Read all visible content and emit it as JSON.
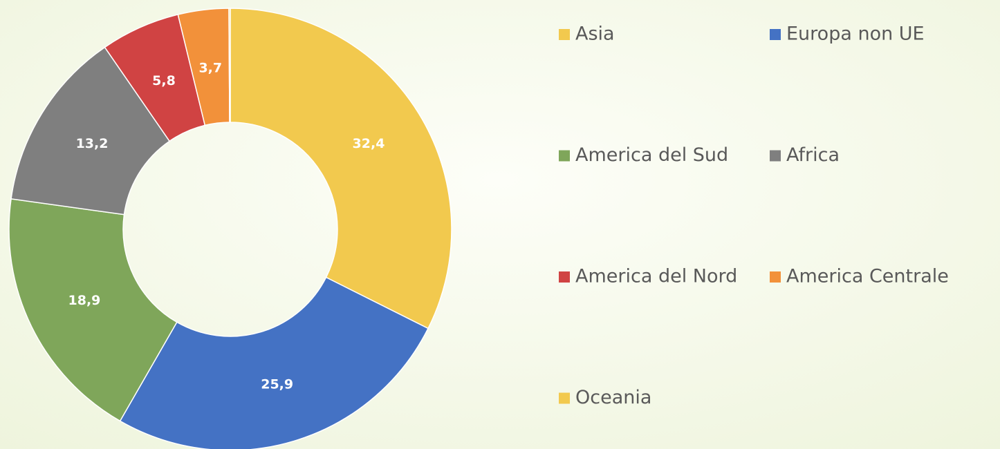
{
  "chart_data": {
    "type": "donut",
    "categories": [
      "Asia",
      "Europa non UE",
      "America del Sud",
      "Africa",
      "America del Nord",
      "America Centrale",
      "Oceania"
    ],
    "values": [
      32.4,
      25.9,
      18.9,
      13.2,
      5.8,
      3.7,
      0.1
    ],
    "value_labels": [
      "32,4",
      "25,9",
      "18,9",
      "13,2",
      "5,8",
      "3,7",
      null
    ],
    "colors": [
      "#f2c94e",
      "#4472c4",
      "#7fa65a",
      "#7f7f7f",
      "#d04343",
      "#f2913a",
      "#f2c94e"
    ],
    "legend": "right"
  }
}
